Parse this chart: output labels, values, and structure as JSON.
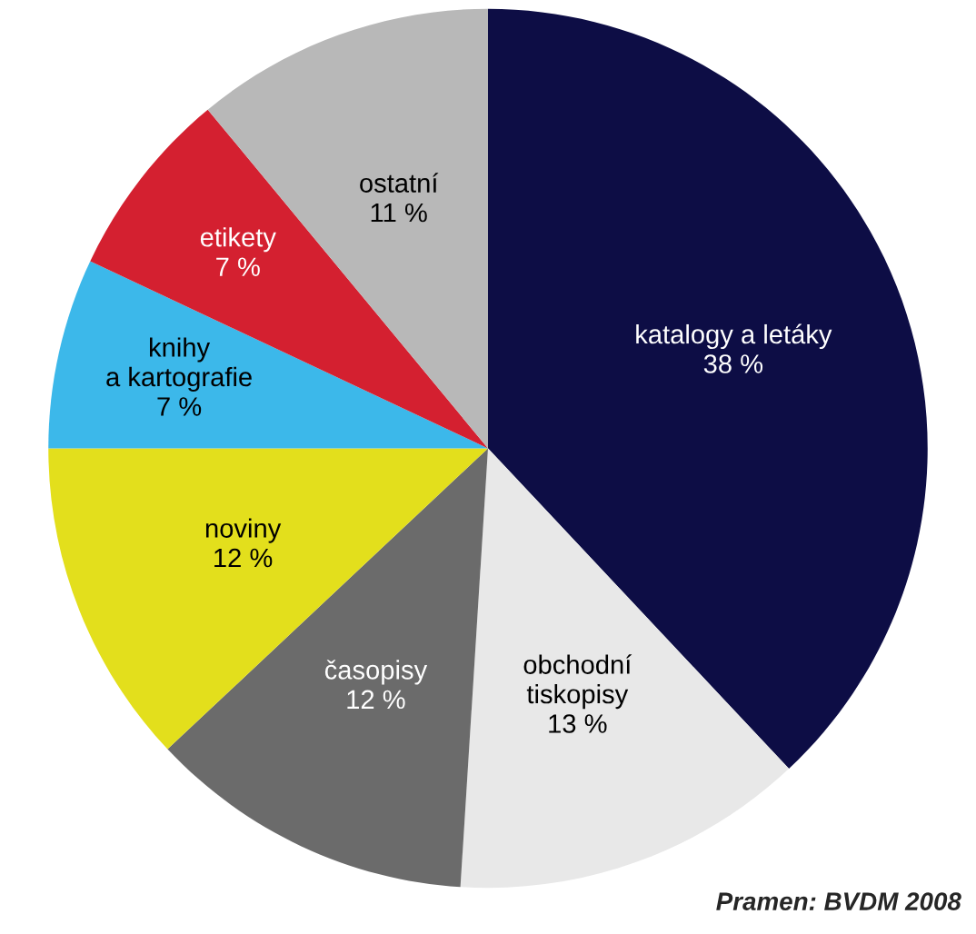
{
  "chart_data": {
    "type": "pie",
    "categories": [
      "katalogy a letáky",
      "obchodní\ntiskopisy",
      "časopisy",
      "noviny",
      "knihy\na kartografie",
      "etikety",
      "ostatní"
    ],
    "values": [
      38,
      13,
      12,
      12,
      7,
      7,
      11
    ],
    "value_labels": [
      "38 %",
      "13 %",
      "12 %",
      "12 %",
      "7 %",
      "7 %",
      "11 %"
    ],
    "colors": [
      "#0d0d45",
      "#e8e8e8",
      "#6b6b6b",
      "#e3df1c",
      "#3cb8ea",
      "#d42030",
      "#b8b8b8"
    ],
    "annotations": [
      "Pramen: BVDM 2008"
    ]
  }
}
